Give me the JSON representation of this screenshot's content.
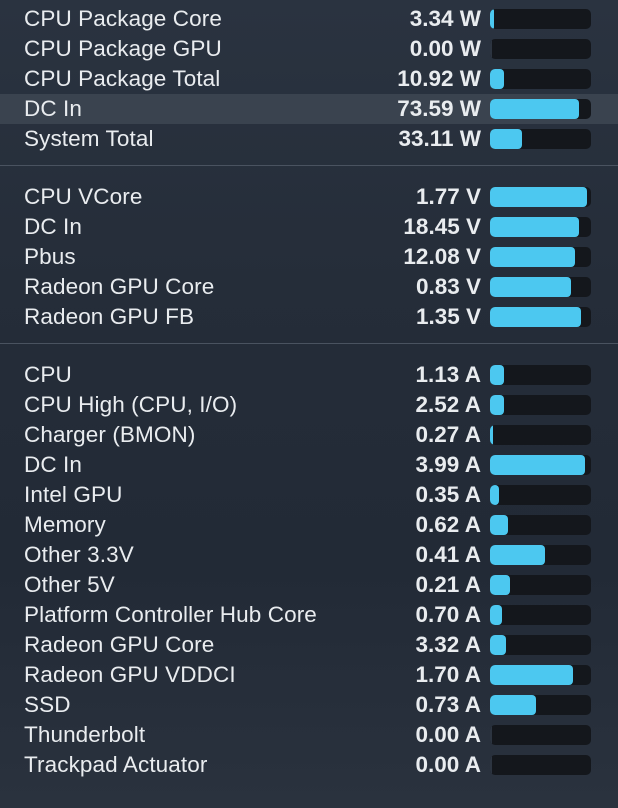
{
  "power": {
    "rows": [
      {
        "label": "CPU Package Core",
        "value": "3.34 W",
        "level": 0.04
      },
      {
        "label": "CPU Package GPU",
        "value": "0.00 W",
        "level": 0.0
      },
      {
        "label": "CPU Package Total",
        "value": "10.92 W",
        "level": 0.14
      },
      {
        "label": "DC In",
        "value": "73.59 W",
        "level": 0.88,
        "highlighted": true
      },
      {
        "label": "System Total",
        "value": "33.11 W",
        "level": 0.32
      }
    ]
  },
  "voltage": {
    "rows": [
      {
        "label": "CPU VCore",
        "value": "1.77 V",
        "level": 0.96
      },
      {
        "label": "DC In",
        "value": "18.45 V",
        "level": 0.88
      },
      {
        "label": "Pbus",
        "value": "12.08 V",
        "level": 0.84
      },
      {
        "label": "Radeon GPU Core",
        "value": "0.83 V",
        "level": 0.8
      },
      {
        "label": "Radeon GPU FB",
        "value": "1.35 V",
        "level": 0.9
      }
    ]
  },
  "current": {
    "rows": [
      {
        "label": "CPU",
        "value": "1.13 A",
        "level": 0.14
      },
      {
        "label": "CPU High (CPU, I/O)",
        "value": "2.52 A",
        "level": 0.14
      },
      {
        "label": "Charger (BMON)",
        "value": "0.27 A",
        "level": 0.02
      },
      {
        "label": "DC In",
        "value": "3.99 A",
        "level": 0.94
      },
      {
        "label": "Intel GPU",
        "value": "0.35 A",
        "level": 0.09
      },
      {
        "label": "Memory",
        "value": "0.62 A",
        "level": 0.18
      },
      {
        "label": "Other 3.3V",
        "value": "0.41 A",
        "level": 0.54
      },
      {
        "label": "Other 5V",
        "value": "0.21 A",
        "level": 0.2
      },
      {
        "label": "Platform Controller Hub Core",
        "value": "0.70 A",
        "level": 0.12
      },
      {
        "label": "Radeon GPU Core",
        "value": "3.32 A",
        "level": 0.16
      },
      {
        "label": "Radeon GPU VDDCI",
        "value": "1.70 A",
        "level": 0.82
      },
      {
        "label": "SSD",
        "value": "0.73 A",
        "level": 0.46
      },
      {
        "label": "Thunderbolt",
        "value": "0.00 A",
        "level": 0.0
      },
      {
        "label": "Trackpad Actuator",
        "value": "0.00 A",
        "level": 0.0
      }
    ]
  },
  "colors": {
    "bar_fill": "#4cc8f0",
    "bar_track": "#14171c",
    "highlight_row": "#3a434f"
  }
}
